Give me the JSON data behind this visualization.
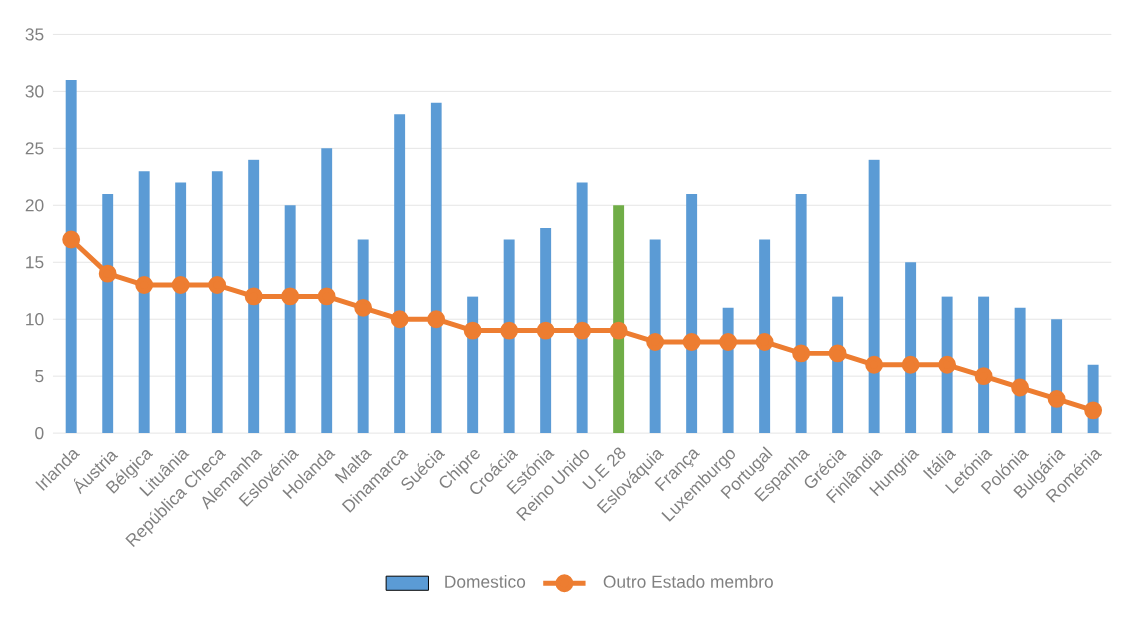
{
  "chart_data": {
    "type": "bar",
    "categories": [
      "Irlanda",
      "Áustria",
      "Bélgica",
      "Lituânia",
      "República Checa",
      "Alemanha",
      "Eslovénia",
      "Holanda",
      "Malta",
      "Dinamarca",
      "Suécia",
      "Chipre",
      "Croácia",
      "Estónia",
      "Reino Unido",
      "U.E 28",
      "Eslováquia",
      "França",
      "Luxemburgo",
      "Portugal",
      "Espanha",
      "Grécia",
      "Finlândia",
      "Hungria",
      "Itália",
      "Letónia",
      "Polónia",
      "Bulgária",
      "Roménia"
    ],
    "series": [
      {
        "name": "Domestico",
        "color": "#5b9bd5",
        "colors": [
          "#5b9bd5",
          "#5b9bd5",
          "#5b9bd5",
          "#5b9bd5",
          "#5b9bd5",
          "#5b9bd5",
          "#5b9bd5",
          "#5b9bd5",
          "#5b9bd5",
          "#5b9bd5",
          "#5b9bd5",
          "#5b9bd5",
          "#5b9bd5",
          "#5b9bd5",
          "#5b9bd5",
          "#70ad47",
          "#5b9bd5",
          "#5b9bd5",
          "#5b9bd5",
          "#5b9bd5",
          "#5b9bd5",
          "#5b9bd5",
          "#5b9bd5",
          "#5b9bd5",
          "#5b9bd5",
          "#5b9bd5",
          "#5b9bd5",
          "#5b9bd5",
          "#5b9bd5"
        ],
        "values": [
          31,
          21,
          23,
          22,
          23,
          24,
          20,
          25,
          17,
          28,
          29,
          12,
          17,
          18,
          22,
          20,
          17,
          21,
          11,
          17,
          21,
          12,
          24,
          15,
          12,
          12,
          11,
          10,
          6
        ]
      },
      {
        "name": "Outro Estado membro",
        "type": "line",
        "color": "#ed7d31",
        "marker": "circle",
        "values": [
          17,
          14,
          13,
          13,
          13,
          12,
          12,
          12,
          11,
          10,
          10,
          9,
          9,
          9,
          9,
          9,
          8,
          8,
          8,
          8,
          7,
          7,
          6,
          6,
          6,
          5,
          4,
          3,
          2
        ]
      }
    ],
    "ylim": [
      0,
      35
    ],
    "yticks": [
      0,
      5,
      10,
      15,
      20,
      25,
      30,
      35
    ],
    "grid": "y",
    "legend": "bottom"
  }
}
